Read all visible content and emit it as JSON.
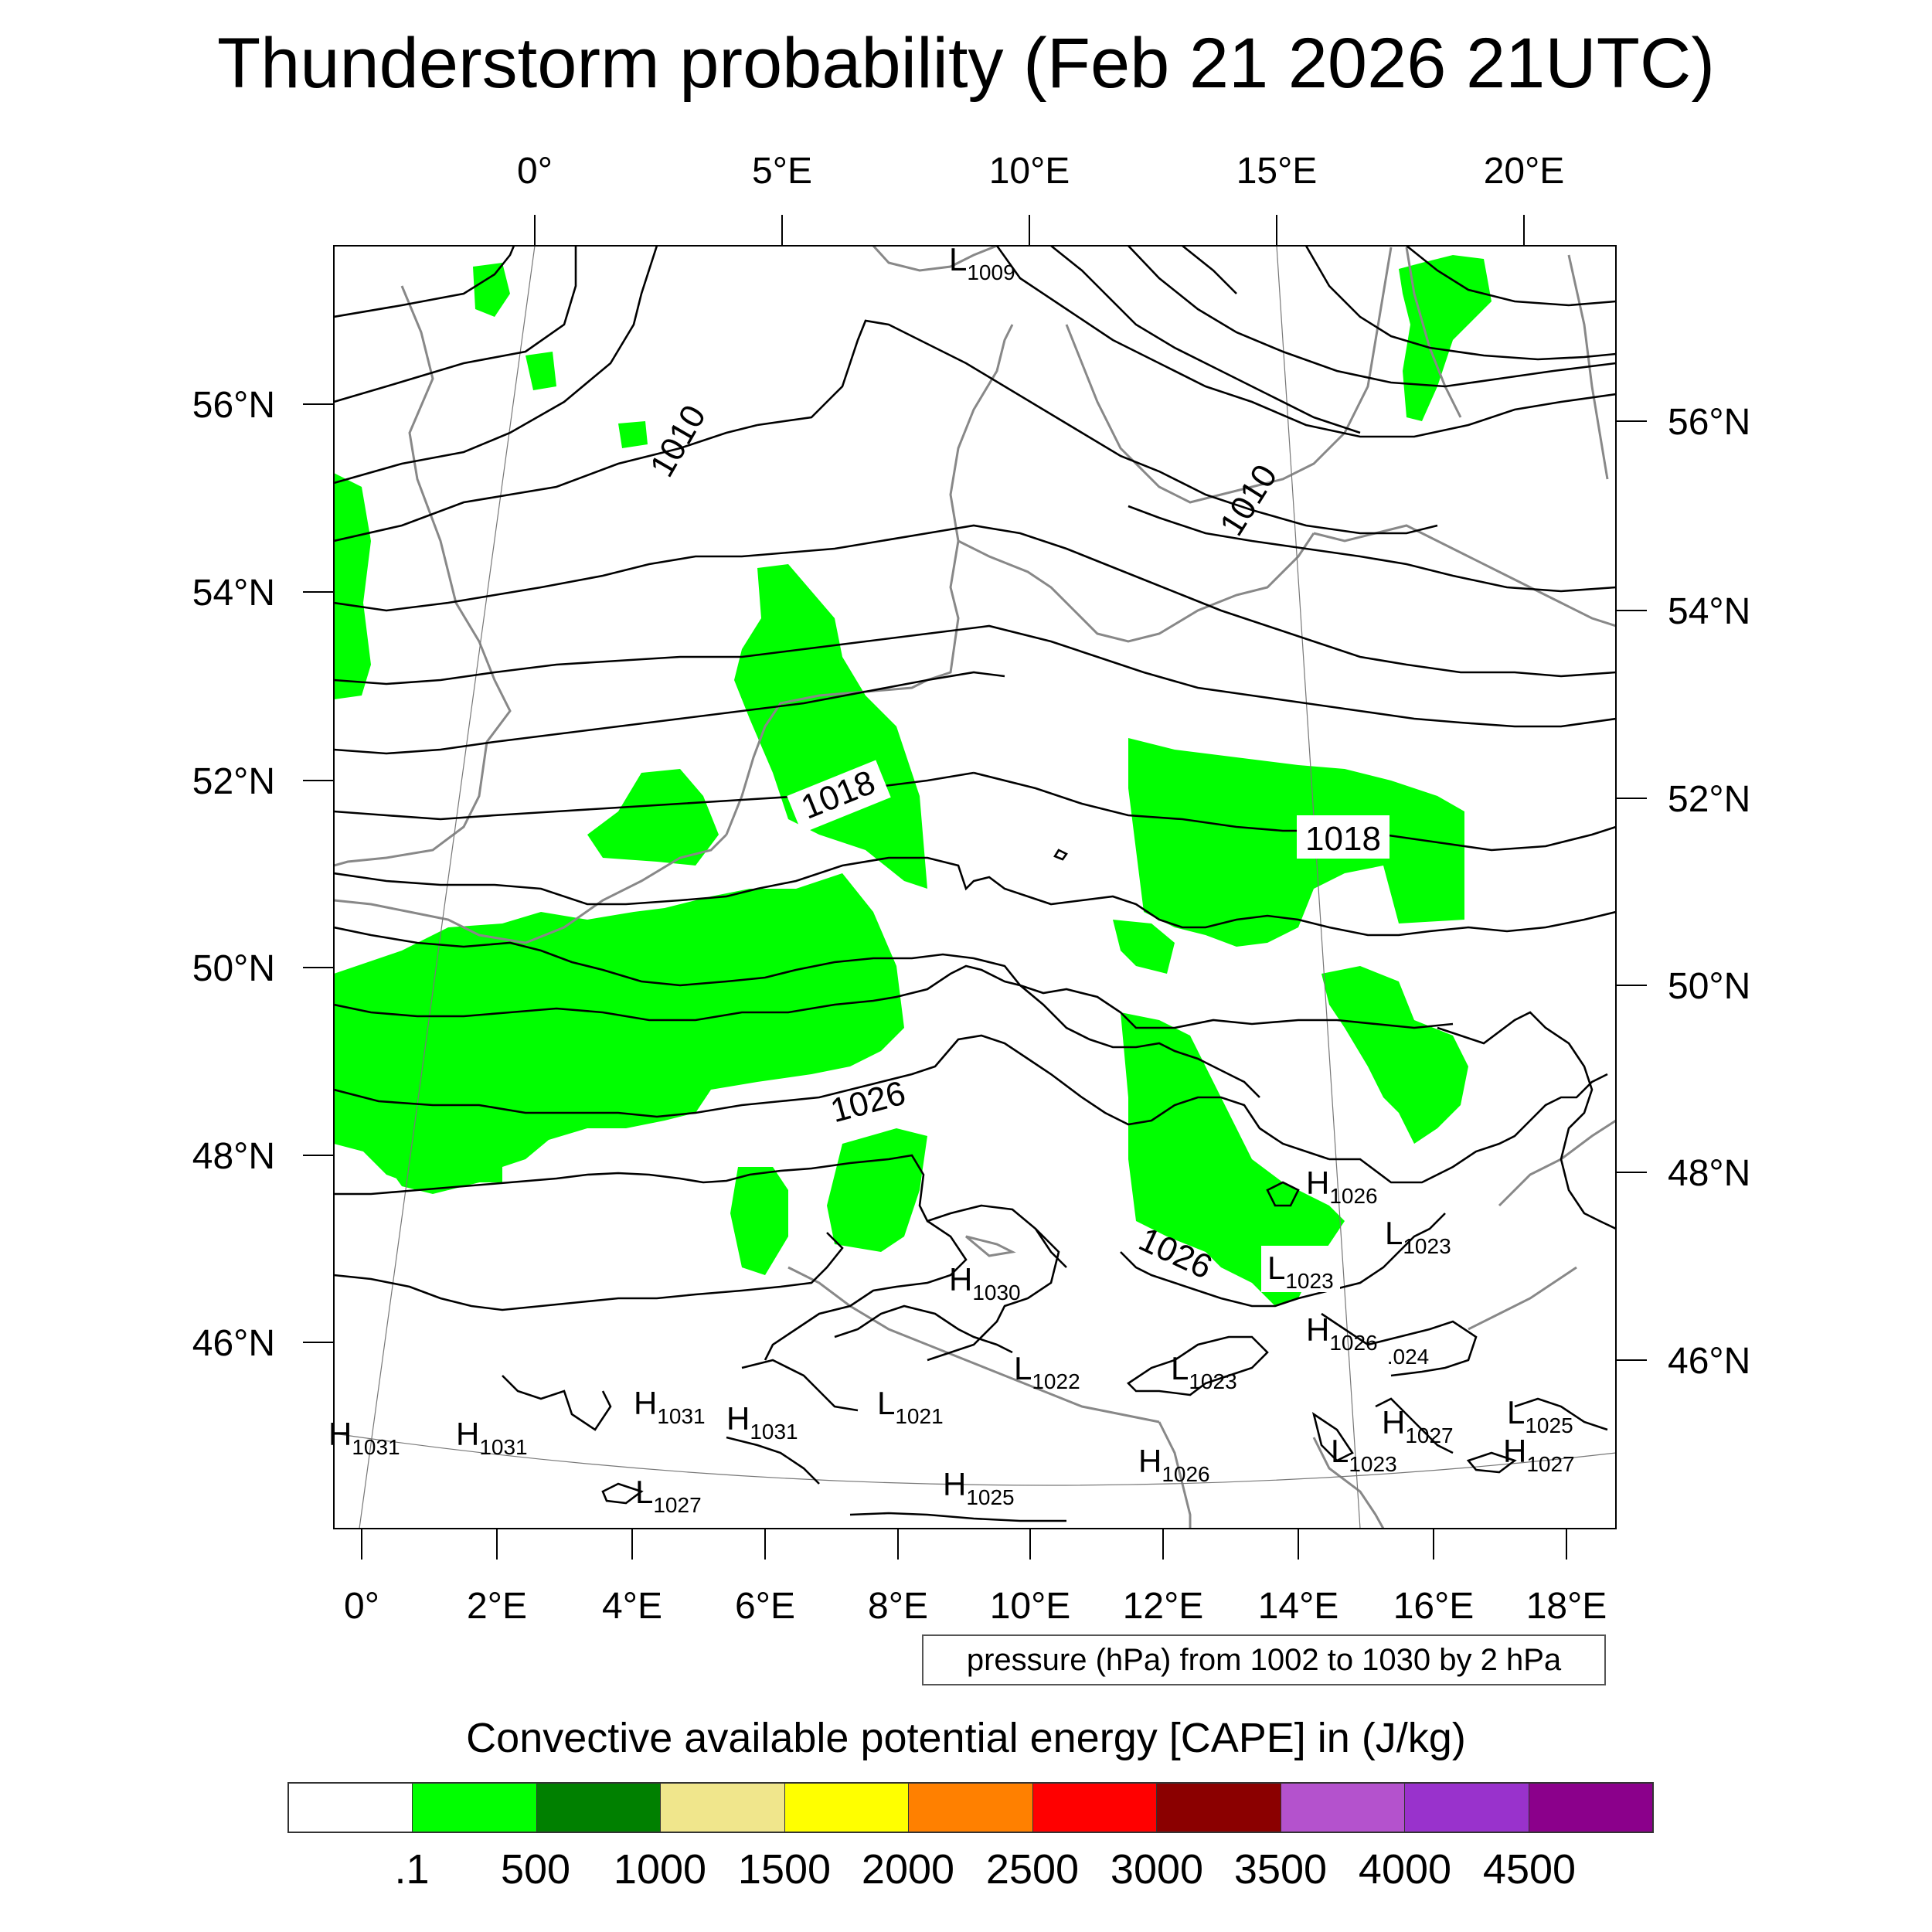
{
  "title": "Thunderstorm probability (Feb 21 2026 21UTC)",
  "top_lon_labels": [
    "0°",
    "5°E",
    "10°E",
    "15°E",
    "20°E"
  ],
  "bottom_lon_labels": [
    "0°",
    "2°E",
    "4°E",
    "6°E",
    "8°E",
    "10°E",
    "12°E",
    "14°E",
    "16°E",
    "18°E"
  ],
  "left_lat_labels": [
    "56°N",
    "54°N",
    "52°N",
    "50°N",
    "48°N",
    "46°N"
  ],
  "right_lat_labels": [
    "56°N",
    "54°N",
    "52°N",
    "50°N",
    "48°N",
    "46°N"
  ],
  "contour_labels": [
    "1010",
    "1010",
    "1018",
    "1018",
    "1026",
    "1026",
    ".024"
  ],
  "pressure_centers": [
    {
      "type": "L",
      "value": "1009"
    },
    {
      "type": "H",
      "value": "1030"
    },
    {
      "type": "H",
      "value": "1026"
    },
    {
      "type": "L",
      "value": "1023"
    },
    {
      "type": "L",
      "value": "1023"
    },
    {
      "type": "H",
      "value": "1026"
    },
    {
      "type": "L",
      "value": "1022"
    },
    {
      "type": "L",
      "value": "1023"
    },
    {
      "type": "L",
      "value": "1021"
    },
    {
      "type": "H",
      "value": "1031"
    },
    {
      "type": "H",
      "value": "1031"
    },
    {
      "type": "H",
      "value": "1031"
    },
    {
      "type": "H",
      "value": "1031"
    },
    {
      "type": "L",
      "value": "1027"
    },
    {
      "type": "H",
      "value": "1025"
    },
    {
      "type": "H",
      "value": "1026"
    },
    {
      "type": "L",
      "value": "1023"
    },
    {
      "type": "H",
      "value": "1027"
    },
    {
      "type": "L",
      "value": "1025"
    },
    {
      "type": "H",
      "value": "1027"
    }
  ],
  "pressure_info": "pressure (hPa) from 1002 to 1030 by 2 hPa",
  "cape_title": "Convective available potential energy [CAPE] in (J/kg)",
  "colorbar": {
    "colors": [
      "#ffffff",
      "#00ff00",
      "#008000",
      "#f0e68c",
      "#ffff00",
      "#ff8000",
      "#ff0000",
      "#8b0000",
      "#b452cd",
      "#9932cc",
      "#8b008b"
    ],
    "labels": [
      ".1",
      "500",
      "1000",
      "1500",
      "2000",
      "2500",
      "3000",
      "3500",
      "4000",
      "4500"
    ]
  }
}
